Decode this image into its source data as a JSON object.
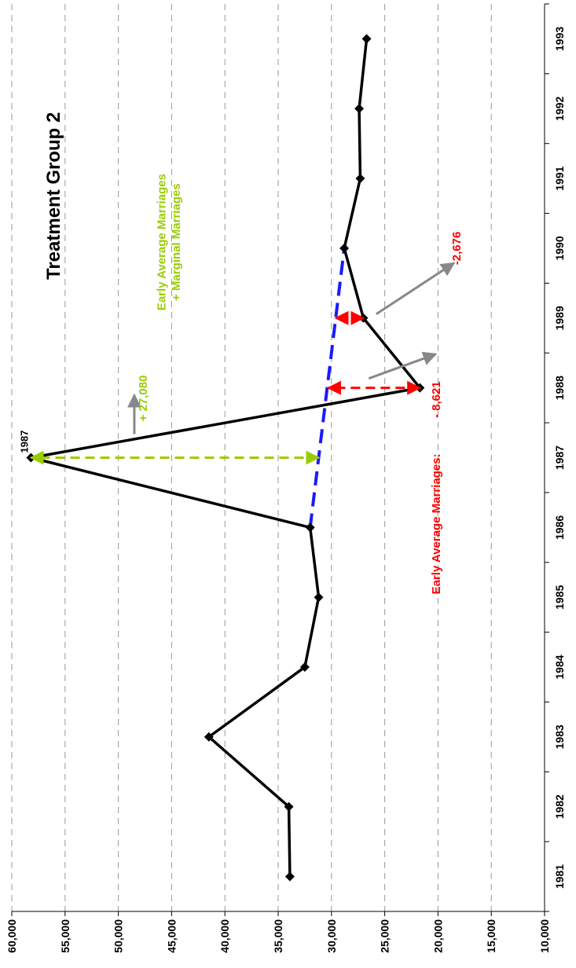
{
  "chart_data": {
    "type": "line",
    "title": "Treatment Group 2",
    "xlabel": "",
    "ylabel": "",
    "orientation": "rotated-90-clockwise",
    "grid": "dashed-horizontal",
    "ylim": [
      10000,
      60000
    ],
    "xlim": [
      1981,
      1993
    ],
    "y_ticks": [
      "10,000",
      "15,000",
      "20,000",
      "25,000",
      "30,000",
      "35,000",
      "40,000",
      "45,000",
      "50,000",
      "55,000",
      "60,000"
    ],
    "x_ticks": [
      "1981",
      "1982",
      "1983",
      "1984",
      "1985",
      "1986",
      "1987",
      "1988",
      "1989",
      "1990",
      "1991",
      "1992",
      "1993"
    ],
    "series": [
      {
        "color": "#000000",
        "marker": "diamond",
        "x": [
          1981,
          1982,
          1983,
          1984,
          1985,
          1986,
          1987,
          1988,
          1989,
          1990,
          1991,
          1992,
          1993
        ],
        "y": [
          33900,
          34000,
          41500,
          32500,
          31200,
          32000,
          58200,
          21700,
          27000,
          28800,
          27300,
          27400,
          26700
        ]
      }
    ],
    "trend_line": {
      "color": "#1a1aff",
      "style": "dashed",
      "x": [
        1986,
        1990
      ],
      "y": [
        32000,
        28800
      ]
    },
    "point_label": {
      "x": 1987,
      "y": 58200,
      "text": "1987"
    },
    "annotations": [
      {
        "color": "#99cc00",
        "lines": [
          "+ 27,080",
          "Early Average Marriages",
          "+ Marginal Marriages"
        ],
        "double_arrow": {
          "x": 1987,
          "y_from": 31200,
          "y_to": 58200
        }
      },
      {
        "color": "#ff0000",
        "lines": [
          "Early Average Marriages:",
          "- 8,621"
        ],
        "double_arrow": {
          "x": 1988,
          "y_from": 21700,
          "y_to": 30300
        }
      },
      {
        "color": "#ff0000",
        "lines": [
          "-2,676"
        ],
        "double_arrow": {
          "x": 1989,
          "y_from": 27000,
          "y_to": 29600
        }
      }
    ],
    "colors": {
      "series": "#000000",
      "trend": "#1a1aff",
      "green": "#99cc00",
      "red": "#ff0000",
      "pointer": "#888888",
      "grid": "#999999"
    }
  }
}
